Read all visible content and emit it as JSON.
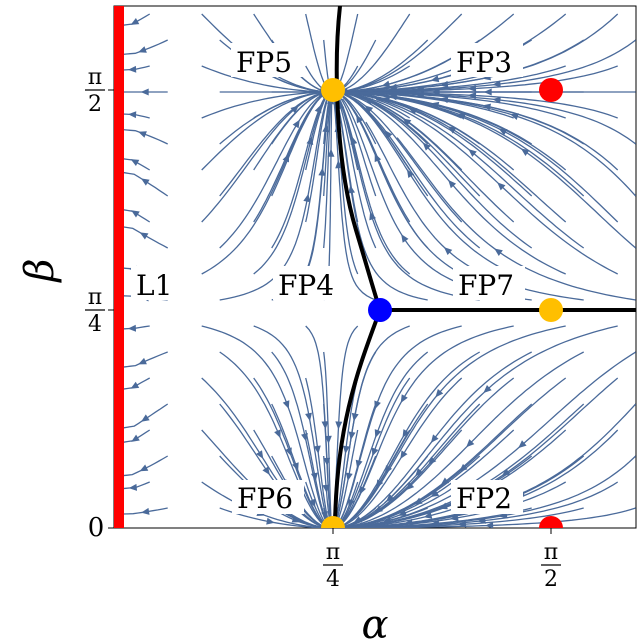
{
  "axes": {
    "xlabel": "α",
    "ylabel": "β",
    "x_ticks": [
      {
        "num": "π",
        "den": "4"
      },
      {
        "num": "π",
        "den": "2"
      }
    ],
    "y_ticks": [
      {
        "plain": "0"
      },
      {
        "num": "π",
        "den": "4"
      },
      {
        "num": "π",
        "den": "2"
      }
    ]
  },
  "diagram": {
    "line_label": "L1",
    "line_color": "#ff0000",
    "separatrix_color": "#000000",
    "stream_color": "#4a6a9a",
    "fixed_points": [
      {
        "label": "FP2",
        "color": "#ff0000"
      },
      {
        "label": "FP3",
        "color": "#ff0000"
      },
      {
        "label": "FP4",
        "color": "#0000ff"
      },
      {
        "label": "FP5",
        "color": "#ffbf00"
      },
      {
        "label": "FP6",
        "color": "#ffbf00"
      },
      {
        "label": "FP7",
        "color": "#ffbf00"
      }
    ]
  }
}
